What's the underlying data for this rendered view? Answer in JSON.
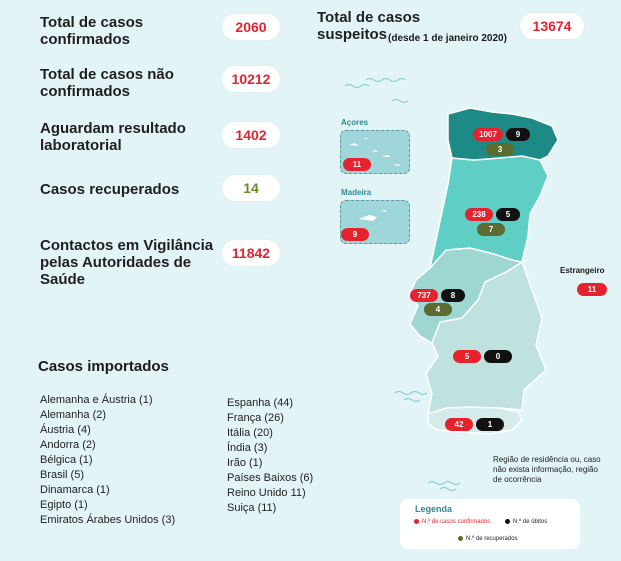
{
  "stats": {
    "confirmed": {
      "label": "Total de casos confirmados",
      "value": "2060"
    },
    "not_confirmed": {
      "label": "Total de casos não confirmados",
      "value": "10212"
    },
    "awaiting": {
      "label": "Aguardam resultado laboratorial",
      "value": "1402"
    },
    "recovered": {
      "label": "Casos recuperados",
      "value": "14"
    },
    "surveillance": {
      "label": "Contactos em Vigilância pelas Autoridades de Saúde",
      "value": "11842"
    },
    "suspected": {
      "label": "Total de casos suspeitos",
      "sublabel": "(desde 1 de janeiro 2020)",
      "value": "13674"
    }
  },
  "imported": {
    "title": "Casos importados",
    "col1": [
      "Alemanha e Áustria (1)",
      "Alemanha (2)",
      "Áustria (4)",
      "Andorra (2)",
      "Bélgica (1)",
      "Brasil (5)",
      "Dinamarca (1)",
      "Egipto (1)",
      "Emiratos Árabes Unidos (3)"
    ],
    "col2": [
      "Espanha (44)",
      "França (26)",
      "Itália (20)",
      "Índia (3)",
      "Irão (1)",
      "Países Baixos (6)",
      "Reino Unido 11)",
      "Suiça (11)"
    ]
  },
  "map": {
    "azores": {
      "label": "Açores",
      "confirmed": "11"
    },
    "madeira": {
      "label": "Madeira",
      "confirmed": "9"
    },
    "foreign": {
      "label": "Estrangeiro",
      "confirmed": "11"
    },
    "regions": {
      "norte": {
        "confirmed": "1007",
        "deaths": "9",
        "recovered": "3"
      },
      "centro": {
        "confirmed": "238",
        "deaths": "5",
        "recovered": "7"
      },
      "lisboa": {
        "confirmed": "737",
        "deaths": "8",
        "recovered": "4"
      },
      "alentejo": {
        "confirmed": "5",
        "deaths": "0"
      },
      "algarve": {
        "confirmed": "42",
        "deaths": "1"
      }
    },
    "note": "Região de residência ou, caso não exista informação, região de ocorrência",
    "colors": {
      "norte": "#1e8a86",
      "centro": "#5fcfc6",
      "lisboa": "#9ed6d2",
      "alentejo": "#bfe2df",
      "algarve": "#d4ebe9"
    }
  },
  "legend": {
    "title": "Legenda",
    "confirmed": "N.º de casos confirmados",
    "deaths": "N.º de óbitos",
    "recovered": "N.º de recuperados"
  }
}
